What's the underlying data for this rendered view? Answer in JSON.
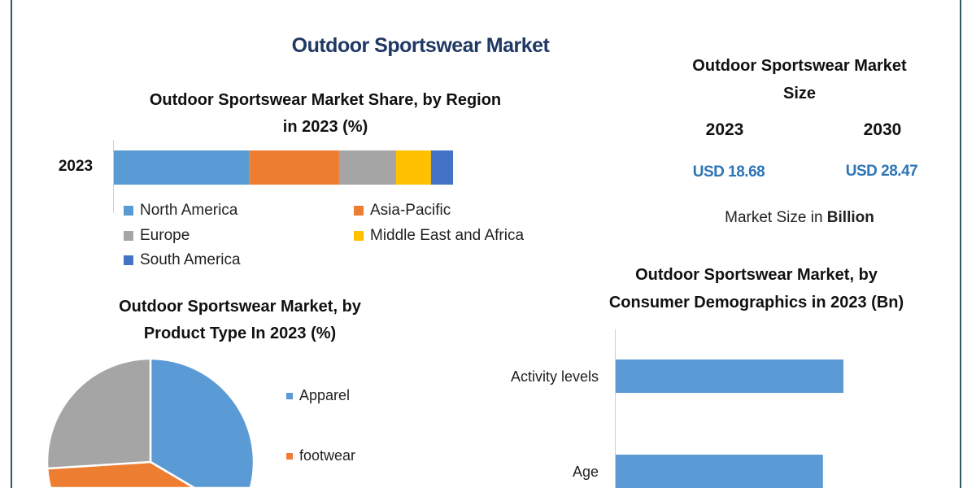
{
  "title": "Outdoor Sportswear Market",
  "market_size": {
    "title_line1": "Outdoor Sportswear Market",
    "title_line2": "Size",
    "years": [
      "2023",
      "2030"
    ],
    "values": [
      "USD 18.68",
      "USD 28.47"
    ],
    "note_prefix": "Market Size in ",
    "note_bold": "Billion"
  },
  "chart_data": [
    {
      "type": "bar",
      "orientation": "horizontal-stacked",
      "title_line1": "Outdoor Sportswear Market Share, by Region",
      "title_line2": "in 2023 (%)",
      "categories": [
        "2023"
      ],
      "series": [
        {
          "name": "North America",
          "values": [
            40.0
          ],
          "color": "#5b9bd5"
        },
        {
          "name": "Asia-Pacific",
          "values": [
            26.4
          ],
          "color": "#ed7d31"
        },
        {
          "name": "Europe",
          "values": [
            16.8
          ],
          "color": "#a5a5a5"
        },
        {
          "name": "Middle East and Africa",
          "values": [
            10.3
          ],
          "color": "#ffc000"
        },
        {
          "name": "South America",
          "values": [
            6.5
          ],
          "color": "#4472c4"
        }
      ],
      "legend": "bottom"
    },
    {
      "type": "pie",
      "title_line1": "Outdoor Sportswear Market, by",
      "title_line2": "Product Type In 2023 (%)",
      "slices": [
        {
          "name": "Apparel",
          "value": 43,
          "color": "#5b9bd5"
        },
        {
          "name": "footwear",
          "value": 31,
          "color": "#ed7d31"
        },
        {
          "value": 26,
          "color": "#a5a5a5"
        }
      ],
      "legend": "right"
    },
    {
      "type": "bar",
      "orientation": "horizontal",
      "title_line1": "Outdoor Sportswear Market, by",
      "title_line2": "Consumer Demographics in 2023 (Bn)",
      "categories": [
        "Activity levels",
        "Age"
      ],
      "values_relative": [
        100,
        91
      ],
      "color": "#5b9bd5"
    }
  ]
}
